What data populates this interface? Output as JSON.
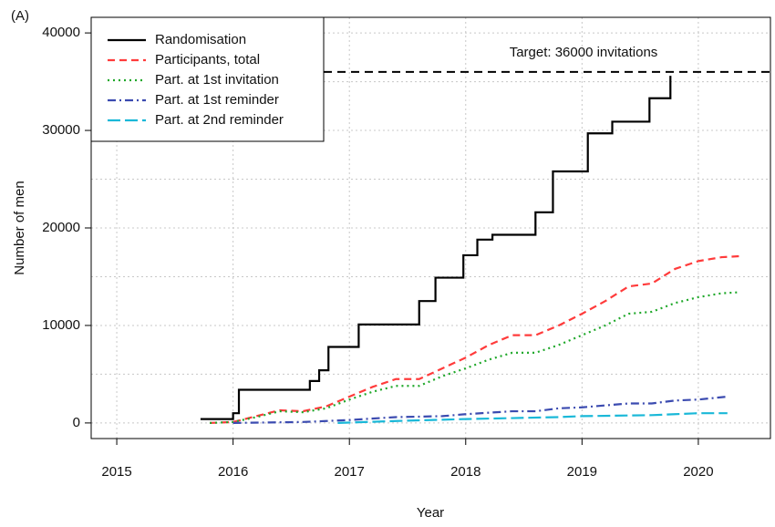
{
  "chart_data": {
    "type": "line",
    "panel_label": "(A)",
    "x_label": "Year",
    "y_label": "Number of men",
    "xlim": [
      2014.78,
      2020.62
    ],
    "xticks": [
      2015,
      2016,
      2017,
      2018,
      2019,
      2020
    ],
    "ylim": [
      -1600,
      41600
    ],
    "yticks": [
      0,
      10000,
      20000,
      30000,
      40000
    ],
    "yminorticks": [
      5000,
      15000,
      25000,
      35000
    ],
    "grid": true,
    "legend": "top-left",
    "target": {
      "value": 36000,
      "label": "Target: 36000 invitations",
      "color": "#000000"
    },
    "series": [
      {
        "name": "Randomisation",
        "color": "#000000",
        "linestyle": "solid",
        "step": true,
        "x": [
          2015.72,
          2016.0,
          2016.05,
          2016.66,
          2016.74,
          2016.82,
          2017.08,
          2017.6,
          2017.74,
          2017.98,
          2018.1,
          2018.23,
          2018.6,
          2018.75,
          2019.05,
          2019.26,
          2019.58,
          2019.76
        ],
        "values": [
          400,
          1000,
          3400,
          4300,
          5400,
          7800,
          10100,
          12500,
          14900,
          17200,
          18800,
          19300,
          21600,
          25800,
          29700,
          30900,
          33300,
          35600
        ]
      },
      {
        "name": "Participants, total",
        "color": "#ff3b3b",
        "linestyle": "dashed",
        "step": false,
        "x": [
          2015.8,
          2016.0,
          2016.2,
          2016.4,
          2016.6,
          2016.8,
          2017.0,
          2017.2,
          2017.4,
          2017.6,
          2017.8,
          2018.0,
          2018.2,
          2018.4,
          2018.6,
          2018.8,
          2019.0,
          2019.2,
          2019.4,
          2019.6,
          2019.8,
          2020.0,
          2020.2,
          2020.35
        ],
        "values": [
          0,
          100,
          700,
          1300,
          1200,
          1700,
          2700,
          3700,
          4500,
          4500,
          5600,
          6700,
          8000,
          9000,
          9000,
          10000,
          11200,
          12500,
          14000,
          14300,
          15800,
          16600,
          17000,
          17100
        ]
      },
      {
        "name": "Part. at 1st invitation",
        "color": "#1fa82a",
        "linestyle": "dotted",
        "step": false,
        "x": [
          2015.8,
          2016.0,
          2016.2,
          2016.4,
          2016.6,
          2016.8,
          2017.0,
          2017.2,
          2017.4,
          2017.6,
          2017.8,
          2018.0,
          2018.2,
          2018.4,
          2018.6,
          2018.8,
          2019.0,
          2019.2,
          2019.4,
          2019.6,
          2019.8,
          2020.0,
          2020.2,
          2020.35
        ],
        "values": [
          0,
          100,
          600,
          1200,
          1100,
          1500,
          2400,
          3200,
          3800,
          3800,
          4800,
          5600,
          6500,
          7200,
          7200,
          8000,
          9000,
          10000,
          11200,
          11400,
          12300,
          12900,
          13300,
          13400
        ]
      },
      {
        "name": "Part. at 1st reminder",
        "color": "#3b4bb0",
        "linestyle": "dotdash",
        "step": false,
        "x": [
          2016.0,
          2016.6,
          2016.8,
          2017.0,
          2017.4,
          2017.8,
          2018.0,
          2018.4,
          2018.6,
          2018.8,
          2019.0,
          2019.4,
          2019.6,
          2019.8,
          2020.0,
          2020.25
        ],
        "values": [
          0,
          100,
          200,
          300,
          600,
          700,
          900,
          1200,
          1200,
          1500,
          1600,
          2000,
          2000,
          2300,
          2400,
          2700
        ]
      },
      {
        "name": "Part. at 2nd reminder",
        "color": "#1ab8d8",
        "linestyle": "longdash",
        "step": false,
        "x": [
          2016.9,
          2017.4,
          2018.0,
          2018.4,
          2018.8,
          2019.0,
          2019.6,
          2019.8,
          2020.0,
          2020.25
        ],
        "values": [
          0,
          200,
          400,
          500,
          600,
          700,
          800,
          900,
          1000,
          1000
        ]
      }
    ]
  }
}
